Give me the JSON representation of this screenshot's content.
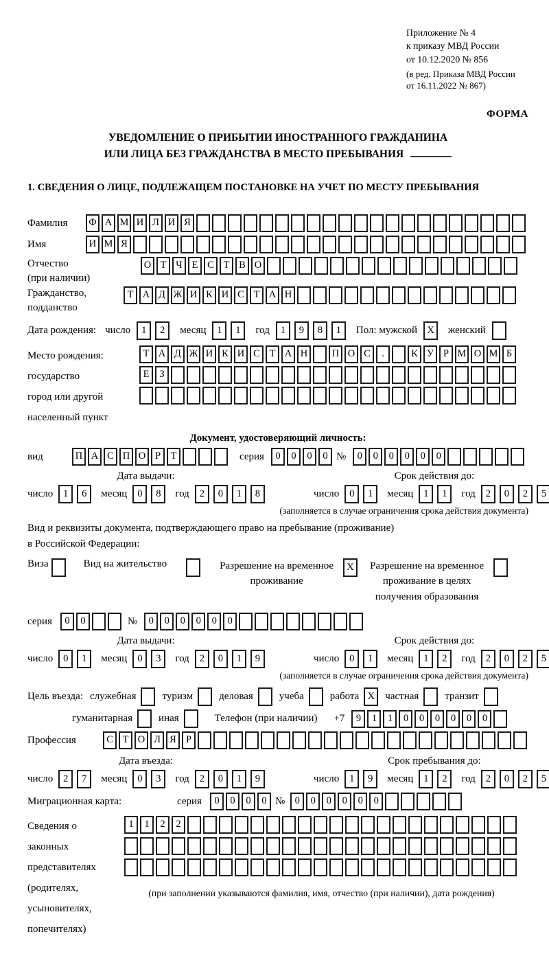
{
  "colors": {
    "background": "#ffffff",
    "text": "#000000",
    "box_border": "#1c1c1c"
  },
  "header": {
    "ref_lines": [
      "Приложение № 4",
      "к приказу МВД России",
      "от 10.12.2020 № 856"
    ],
    "amend_lines": [
      "(в ред. Приказа МВД России",
      "от 16.11.2022 № 867)"
    ],
    "form_label": "ФОРМА"
  },
  "title": {
    "line1": "УВЕДОМЛЕНИЕ О ПРИБЫТИИ ИНОСТРАННОГО ГРАЖДАНИНА",
    "line2": "ИЛИ ЛИЦА БЕЗ ГРАЖДАНСТВА В МЕСТО ПРЕБЫВАНИЯ"
  },
  "section1_heading": "1. СВЕДЕНИЯ О ЛИЦЕ, ПОДЛЕЖАЩЕМ ПОСТАНОВКЕ НА УЧЕТ ПО МЕСТУ ПРЕБЫВАНИЯ",
  "surname": {
    "label": "Фамилия",
    "cells": {
      "v": "ФАМИЛИЯ",
      "n": 28
    }
  },
  "given_name": {
    "label": "Имя",
    "cells": {
      "v": "ИМЯ",
      "n": 28
    }
  },
  "patronymic": {
    "label1": "Отчество",
    "label2": "(при наличии)",
    "cells": {
      "v": "ОТЧЕСТВО",
      "n": 24
    }
  },
  "citizenship": {
    "label1": "Гражданство,",
    "label2": "подданство",
    "cells": {
      "v": "ТАДЖИКИСТАН",
      "n": 25
    }
  },
  "birth_date": {
    "label": "Дата рождения:",
    "day_label": "число",
    "day": {
      "v": "12",
      "n": 2
    },
    "month_label": "месяц",
    "month": {
      "v": "11",
      "n": 2
    },
    "year_label": "год",
    "year": {
      "v": "1981",
      "n": 4
    },
    "sex_label": "Пол: мужской",
    "male": "X",
    "female_label": "женский",
    "female": ""
  },
  "birth_place": {
    "labels": [
      "Место рождения:",
      "государство",
      "город или другой",
      "населенный пункт"
    ],
    "row1": {
      "v": "ТАДЖИКИСТАН ПОС. КУРМОМБ",
      "n": 24
    },
    "row2": {
      "v": "ЕЗ",
      "n": 24
    },
    "row3": {
      "v": "",
      "n": 24
    }
  },
  "identity_doc": {
    "heading": "Документ, удостоверяющий личность:",
    "type_label": "вид",
    "type": {
      "v": "ПАСПОРТ",
      "n": 10
    },
    "series_label": "серия",
    "series": {
      "v": "0000",
      "n": 4
    },
    "number_label": "№",
    "number": {
      "v": "000000",
      "n": 11
    },
    "issue": {
      "heading": "Дата выдачи:",
      "day_label": "число",
      "day": {
        "v": "16",
        "n": 2
      },
      "month_label": "месяц",
      "month": {
        "v": "08",
        "n": 2
      },
      "year_label": "год",
      "year": {
        "v": "2018",
        "n": 4
      }
    },
    "expiry": {
      "heading": "Срок действия до:",
      "day_label": "число",
      "day": {
        "v": "01",
        "n": 2
      },
      "month_label": "месяц",
      "month": {
        "v": "11",
        "n": 2
      },
      "year_label": "год",
      "year": {
        "v": "2025",
        "n": 4
      }
    },
    "note": "(заполняется в случае ограничения срока действия документа)"
  },
  "residence_doc": {
    "intro1": "Вид и реквизиты документа, подтверждающего право на пребывание (проживание)",
    "intro2": "в Российской Федерации:",
    "visa_label": "Виза",
    "visa": "",
    "residence_permit_label": "Вид на жительство",
    "residence_permit": "",
    "temp_permit_label1": "Разрешение на временное",
    "temp_permit_label2": "проживание",
    "temp_permit": "X",
    "edu_permit_label1": "Разрешение на временное",
    "edu_permit_label2": "проживание в целях",
    "edu_permit_label3": "получения образования",
    "edu_permit": "",
    "series_label": "серия",
    "series": {
      "v": "00",
      "n": 4
    },
    "number_label": "№",
    "number": {
      "v": "000000",
      "n": 14
    },
    "issue": {
      "heading": "Дата выдачи:",
      "day_label": "число",
      "day": {
        "v": "01",
        "n": 2
      },
      "month_label": "месяц",
      "month": {
        "v": "03",
        "n": 2
      },
      "year_label": "год",
      "year": {
        "v": "2019",
        "n": 4
      }
    },
    "expiry": {
      "heading": "Срок действия до:",
      "day_label": "число",
      "day": {
        "v": "01",
        "n": 2
      },
      "month_label": "месяц",
      "month": {
        "v": "12",
        "n": 2
      },
      "year_label": "год",
      "year": {
        "v": "2025",
        "n": 4
      }
    },
    "note": "(заполняется в случае ограничения срока действия документа)"
  },
  "entry_purpose": {
    "label": "Цель въезда:",
    "options1": [
      {
        "label": "служебная",
        "checked": ""
      },
      {
        "label": "туризм",
        "checked": ""
      },
      {
        "label": "деловая",
        "checked": ""
      },
      {
        "label": "учеба",
        "checked": ""
      },
      {
        "label": "работа",
        "checked": "X"
      },
      {
        "label": "частная",
        "checked": ""
      },
      {
        "label": "транзит",
        "checked": ""
      }
    ],
    "options2": [
      {
        "label": "гуманитарная",
        "checked": ""
      },
      {
        "label": "иная",
        "checked": ""
      }
    ],
    "phone_label": "Телефон (при наличии)",
    "phone_prefix": "+7",
    "phone": {
      "v": "911000000",
      "n": 10
    }
  },
  "profession": {
    "label": "Профессия",
    "cells": {
      "v": "СТОЛЯР",
      "n": 27
    }
  },
  "entry_dates": {
    "issue": {
      "heading": "Дата въезда:",
      "day_label": "число",
      "day": {
        "v": "27",
        "n": 2
      },
      "month_label": "месяц",
      "month": {
        "v": "03",
        "n": 2
      },
      "year_label": "год",
      "year": {
        "v": "2019",
        "n": 4
      }
    },
    "expiry": {
      "heading": "Срок пребывания до:",
      "day_label": "число",
      "day": {
        "v": "19",
        "n": 2
      },
      "month_label": "месяц",
      "month": {
        "v": "12",
        "n": 2
      },
      "year_label": "год",
      "year": {
        "v": "2025",
        "n": 4
      }
    }
  },
  "migration_card": {
    "label": "Миграционная карта:",
    "series_label": "серия",
    "series": {
      "v": "0000",
      "n": 4
    },
    "number_label": "№",
    "number": {
      "v": "000000",
      "n": 11
    }
  },
  "representatives": {
    "labels": [
      "Сведения о",
      "законных",
      "представителях",
      "(родителях,",
      "усыновителях,",
      "попечителях)"
    ],
    "row1": {
      "v": "1122",
      "n": 25
    },
    "row2": {
      "v": "",
      "n": 25
    },
    "row3": {
      "v": "",
      "n": 25
    },
    "note": "(при заполнении указываются фамилия, имя, отчество (при наличии), дата рождения)"
  }
}
